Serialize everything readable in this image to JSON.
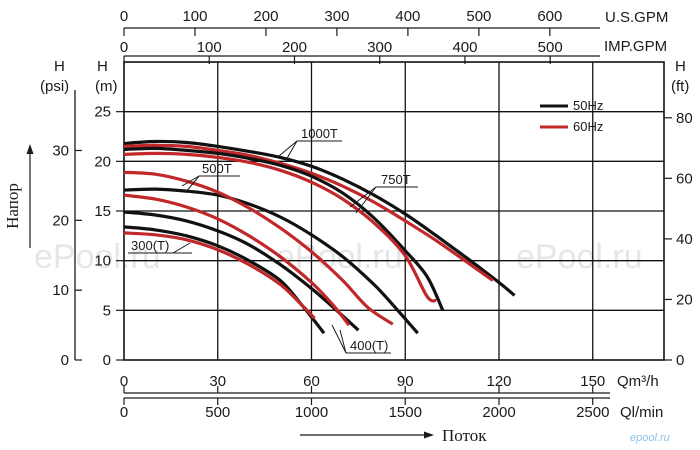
{
  "chart_data": {
    "type": "line",
    "axes": {
      "usgpm": {
        "label": "U.S.GPM",
        "ticks": [
          0,
          100,
          200,
          300,
          400,
          500,
          600
        ]
      },
      "impgpm": {
        "label": "IMP.GPM",
        "ticks": [
          0,
          100,
          200,
          300,
          400,
          500
        ]
      },
      "qm3h": {
        "label": "Qm³/h",
        "ticks": [
          0,
          30,
          60,
          90,
          120,
          150
        ],
        "xlim": [
          0,
          172.8
        ]
      },
      "qlmin": {
        "label": "Ql/min",
        "ticks": [
          0,
          500,
          1000,
          1500,
          2000,
          2500
        ]
      },
      "head_m": {
        "label": "H\n(m)",
        "ticks": [
          0,
          5,
          10,
          15,
          20,
          25
        ],
        "ylim": [
          0,
          30
        ]
      },
      "head_psi": {
        "label": "H\n(psi)",
        "ticks": [
          0,
          10,
          20,
          30
        ]
      },
      "head_ft": {
        "label": "H\n(ft)",
        "ticks": [
          0,
          20,
          40,
          60,
          80
        ]
      }
    },
    "y_title": "Напор",
    "x_title": "Поток",
    "legend": {
      "position": "top-right",
      "items": [
        {
          "label": "50Hz",
          "color": "#111111"
        },
        {
          "label": "60Hz",
          "color": "#c0282a"
        }
      ]
    },
    "grid": true,
    "series_labels": [
      "1000T",
      "750T",
      "500T",
      "400(T)",
      "300(T)"
    ],
    "series": [
      {
        "name": "1000T",
        "freq": "50Hz",
        "color": "#111111",
        "points": [
          [
            0,
            21.8
          ],
          [
            10,
            22
          ],
          [
            20,
            21.9
          ],
          [
            30,
            21.5
          ],
          [
            40,
            21
          ],
          [
            50,
            20.4
          ],
          [
            60,
            19.5
          ],
          [
            70,
            18.2
          ],
          [
            80,
            16.6
          ],
          [
            90,
            14.7
          ],
          [
            100,
            12.5
          ],
          [
            110,
            10.2
          ],
          [
            120,
            7.8
          ],
          [
            125,
            6.5
          ]
        ]
      },
      {
        "name": "1000T",
        "freq": "60Hz",
        "color": "#c0282a",
        "points": [
          [
            0,
            21.5
          ],
          [
            10,
            21.6
          ],
          [
            20,
            21.5
          ],
          [
            30,
            21.1
          ],
          [
            40,
            20.6
          ],
          [
            50,
            19.8
          ],
          [
            60,
            18.8
          ],
          [
            70,
            17.5
          ],
          [
            80,
            15.9
          ],
          [
            90,
            14
          ],
          [
            100,
            12
          ],
          [
            110,
            9.8
          ],
          [
            118,
            8
          ]
        ]
      },
      {
        "name": "750T",
        "freq": "50Hz",
        "color": "#111111",
        "points": [
          [
            0,
            21.2
          ],
          [
            10,
            21.3
          ],
          [
            20,
            21.1
          ],
          [
            30,
            20.8
          ],
          [
            40,
            20.3
          ],
          [
            50,
            19.6
          ],
          [
            60,
            18.5
          ],
          [
            70,
            16.8
          ],
          [
            80,
            14.3
          ],
          [
            90,
            11
          ],
          [
            97,
            8.4
          ],
          [
            102,
            5
          ]
        ]
      },
      {
        "name": "750T",
        "freq": "60Hz",
        "color": "#c0282a",
        "points": [
          [
            0,
            20.7
          ],
          [
            10,
            20.8
          ],
          [
            20,
            20.7
          ],
          [
            30,
            20.4
          ],
          [
            40,
            19.9
          ],
          [
            50,
            19.1
          ],
          [
            60,
            17.9
          ],
          [
            70,
            16.2
          ],
          [
            80,
            13.8
          ],
          [
            90,
            10.5
          ],
          [
            97,
            6.4
          ],
          [
            100,
            6
          ]
        ]
      },
      {
        "name": "500T",
        "freq": "50Hz",
        "color": "#111111",
        "points": [
          [
            0,
            17.1
          ],
          [
            10,
            17.2
          ],
          [
            20,
            17
          ],
          [
            30,
            16.6
          ],
          [
            40,
            15.7
          ],
          [
            50,
            14.4
          ],
          [
            60,
            12.6
          ],
          [
            70,
            10.4
          ],
          [
            80,
            7.6
          ],
          [
            87,
            5.2
          ],
          [
            94,
            2.7
          ]
        ]
      },
      {
        "name": "500T",
        "freq": "60Hz",
        "color": "#c0282a",
        "points": [
          [
            0,
            18.9
          ],
          [
            10,
            18.7
          ],
          [
            20,
            18
          ],
          [
            30,
            16.9
          ],
          [
            40,
            15.3
          ],
          [
            50,
            13.3
          ],
          [
            60,
            10.9
          ],
          [
            70,
            8
          ],
          [
            78,
            5.3
          ],
          [
            86,
            3.6
          ]
        ]
      },
      {
        "name": "400(T)",
        "freq": "50Hz",
        "color": "#111111",
        "points": [
          [
            0,
            14.9
          ],
          [
            10,
            14.6
          ],
          [
            20,
            14
          ],
          [
            30,
            13
          ],
          [
            40,
            11.6
          ],
          [
            50,
            9.6
          ],
          [
            60,
            7.2
          ],
          [
            68,
            5
          ],
          [
            75,
            3
          ]
        ]
      },
      {
        "name": "400(T)",
        "freq": "60Hz",
        "color": "#c0282a",
        "points": [
          [
            0,
            16.6
          ],
          [
            10,
            16.2
          ],
          [
            20,
            15.4
          ],
          [
            30,
            14.2
          ],
          [
            40,
            12.5
          ],
          [
            50,
            10.4
          ],
          [
            60,
            7.8
          ],
          [
            67,
            5.5
          ],
          [
            72,
            3.5
          ]
        ]
      },
      {
        "name": "300(T)",
        "freq": "50Hz",
        "color": "#111111",
        "points": [
          [
            0,
            13.4
          ],
          [
            10,
            13.1
          ],
          [
            20,
            12.5
          ],
          [
            30,
            11.5
          ],
          [
            40,
            10
          ],
          [
            50,
            8
          ],
          [
            57,
            5.5
          ],
          [
            64,
            2.7
          ]
        ]
      },
      {
        "name": "300(T)",
        "freq": "60Hz",
        "color": "#c0282a",
        "points": [
          [
            0,
            12.8
          ],
          [
            10,
            12.6
          ],
          [
            20,
            12.1
          ],
          [
            30,
            11.1
          ],
          [
            40,
            9.6
          ],
          [
            50,
            7.6
          ],
          [
            57,
            5.5
          ],
          [
            61,
            4.2
          ]
        ]
      }
    ]
  },
  "watermark": "ePool.ru",
  "brand": "epool.ru"
}
